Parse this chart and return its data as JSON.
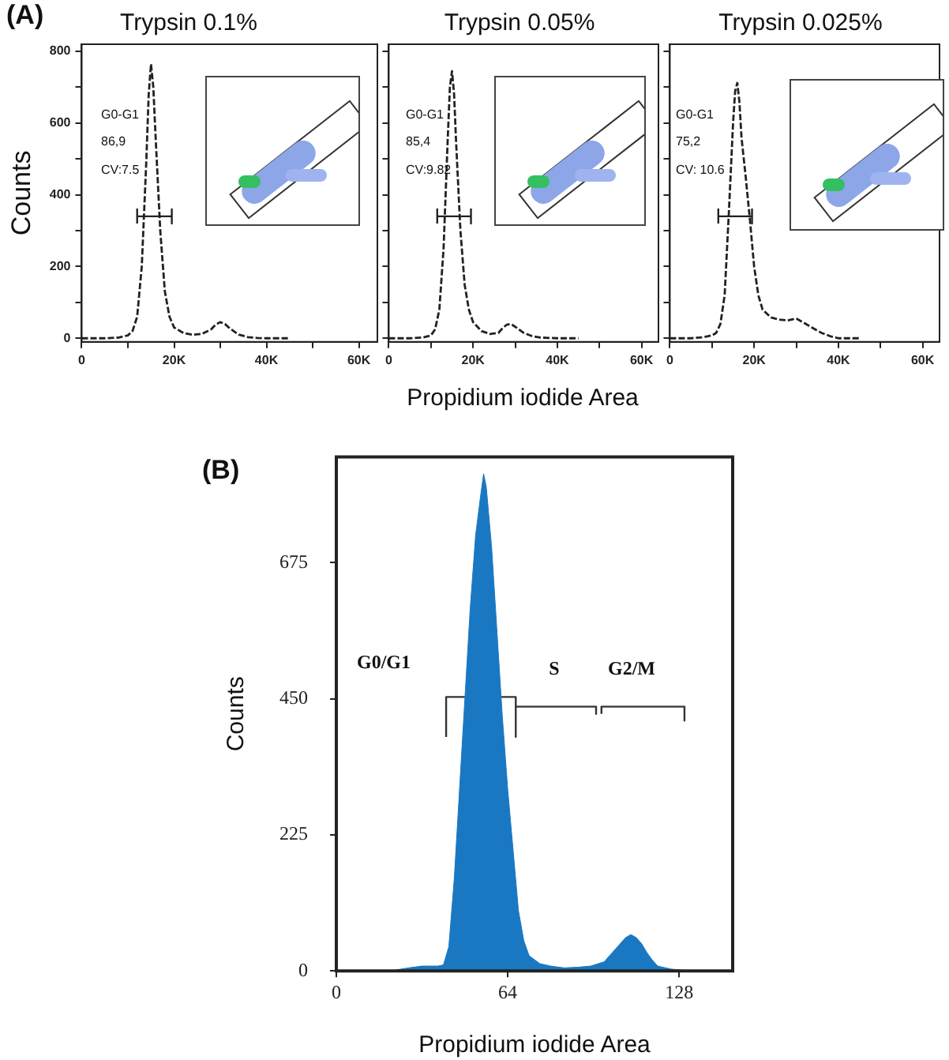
{
  "chart_data": [
    {
      "type": "line",
      "title": "Trypsin 0.1%",
      "ylabel": "Counts",
      "annotations": [
        "(A)",
        "G0-G1",
        "86,9",
        "CV:7.5"
      ],
      "xlim": [
        0,
        64000
      ],
      "ylim": [
        -10,
        820
      ],
      "xticks": [
        0,
        {
          "value": 10000,
          "label": null
        },
        {
          "value": 20000,
          "label": "20K"
        },
        {
          "value": 30000,
          "label": null
        },
        {
          "value": 40000,
          "label": "40K"
        },
        {
          "value": 50000,
          "label": null
        },
        {
          "value": 60000,
          "label": "60K"
        }
      ],
      "yticks": [
        0,
        {
          "value": 100,
          "label": null
        },
        200,
        {
          "value": 300,
          "label": null
        },
        400,
        {
          "value": 500,
          "label": null
        },
        600,
        {
          "value": 700,
          "label": null
        },
        800
      ],
      "series": [
        {
          "color": "#222222",
          "line_style": "dashed",
          "x": [
            0,
            5000,
            8000,
            10000,
            11000,
            12000,
            13000,
            14000,
            14500,
            15000,
            15500,
            16000,
            17000,
            18000,
            19000,
            20000,
            22000,
            24000,
            26000,
            28000,
            29000,
            30000,
            31000,
            32000,
            34000,
            36000,
            38000,
            40000,
            45000
          ],
          "values": [
            0,
            0,
            2,
            8,
            20,
            60,
            200,
            500,
            680,
            765,
            700,
            560,
            300,
            130,
            60,
            30,
            15,
            10,
            12,
            25,
            38,
            45,
            40,
            28,
            10,
            3,
            1,
            0,
            0
          ]
        },
        {
          "type": "line",
          "color": "#222222",
          "line_style": "solid",
          "x": [
            12000,
            12000,
            12000,
            19500,
            19500,
            19500
          ],
          "values": [
            320,
            360,
            340,
            340,
            360,
            320
          ]
        }
      ],
      "grid": false,
      "marker": "none",
      "legend": false
    },
    {
      "type": "line",
      "title": "Trypsin 0.05%",
      "xlabel": "Propidium iodide Area",
      "annotations": [
        "G0-G1",
        "85,4",
        "CV:9.82"
      ],
      "xlim": [
        0,
        64000
      ],
      "ylim": [
        -10,
        820
      ],
      "xticks": [
        0,
        {
          "value": 10000,
          "label": null
        },
        {
          "value": 20000,
          "label": "20K"
        },
        {
          "value": 30000,
          "label": null
        },
        {
          "value": 40000,
          "label": "40K"
        },
        {
          "value": 50000,
          "label": null
        },
        {
          "value": 60000,
          "label": "60K"
        }
      ],
      "yticks": [
        0,
        {
          "value": 100,
          "label": null
        },
        200,
        {
          "value": 300,
          "label": null
        },
        400,
        {
          "value": 500,
          "label": null
        },
        600,
        {
          "value": 700,
          "label": null
        },
        800
      ],
      "series": [
        {
          "color": "#222222",
          "line_style": "dashed",
          "x": [
            0,
            5000,
            8000,
            10000,
            11000,
            12000,
            13000,
            14000,
            14500,
            15000,
            15500,
            16000,
            17000,
            18000,
            19000,
            20000,
            22000,
            24000,
            26000,
            27000,
            28000,
            29000,
            30000,
            32000,
            34000,
            36000,
            38000,
            40000,
            45000
          ],
          "values": [
            0,
            0,
            2,
            8,
            25,
            80,
            250,
            560,
            700,
            745,
            680,
            540,
            300,
            150,
            80,
            45,
            20,
            12,
            15,
            28,
            38,
            40,
            32,
            15,
            6,
            2,
            1,
            0,
            0
          ]
        },
        {
          "type": "line",
          "color": "#222222",
          "line_style": "solid",
          "x": [
            11500,
            11500,
            11500,
            19500,
            19500,
            19500
          ],
          "values": [
            320,
            360,
            340,
            340,
            360,
            320
          ]
        }
      ],
      "grid": false,
      "marker": "none",
      "legend": false,
      "tick_labels": "x"
    },
    {
      "type": "line",
      "title": "Trypsin 0.025%",
      "annotations": [
        "G0-G1",
        "75,2",
        "CV: 10.6"
      ],
      "xlim": [
        0,
        64000
      ],
      "ylim": [
        -10,
        820
      ],
      "xticks": [
        0,
        {
          "value": 10000,
          "label": null
        },
        {
          "value": 20000,
          "label": "20K"
        },
        {
          "value": 30000,
          "label": null
        },
        {
          "value": 40000,
          "label": "40K"
        },
        {
          "value": 50000,
          "label": null
        },
        {
          "value": 60000,
          "label": "60K"
        }
      ],
      "yticks": [
        0,
        {
          "value": 100,
          "label": null
        },
        200,
        {
          "value": 300,
          "label": null
        },
        400,
        {
          "value": 500,
          "label": null
        },
        600,
        {
          "value": 700,
          "label": null
        },
        800
      ],
      "series": [
        {
          "color": "#222222",
          "line_style": "dashed",
          "x": [
            0,
            5000,
            8000,
            10000,
            11000,
            12000,
            13000,
            14000,
            15000,
            15500,
            16000,
            16500,
            17000,
            18000,
            19000,
            20000,
            21000,
            22000,
            24000,
            26000,
            28000,
            30000,
            32000,
            34000,
            36000,
            38000,
            40000,
            45000
          ],
          "values": [
            0,
            0,
            3,
            8,
            15,
            40,
            120,
            350,
            600,
            690,
            712,
            660,
            560,
            450,
            330,
            200,
            120,
            80,
            58,
            52,
            50,
            55,
            42,
            28,
            15,
            6,
            0,
            0
          ]
        },
        {
          "type": "line",
          "color": "#222222",
          "line_style": "solid",
          "x": [
            11500,
            11500,
            11500,
            19500,
            19500,
            19500
          ],
          "values": [
            320,
            360,
            340,
            340,
            360,
            320
          ]
        }
      ],
      "grid": false,
      "marker": "none",
      "legend": false,
      "tick_labels": "x"
    },
    {
      "type": "area",
      "ylabel": "Counts",
      "xlabel": "Propidium iodide Area",
      "annotations": [
        "(B)",
        "G0/G1",
        "S",
        "G2/M"
      ],
      "xlim": [
        0,
        148
      ],
      "ylim": [
        0,
        850
      ],
      "xticks": [
        0,
        64,
        128
      ],
      "yticks": [
        0,
        225,
        450,
        675
      ],
      "series": [
        {
          "color": "#1a78c2",
          "x": [
            20,
            27,
            32,
            38,
            40,
            42,
            44,
            46,
            48,
            50,
            52,
            54,
            55,
            56,
            58,
            60,
            62,
            64,
            66,
            68,
            70,
            72,
            76,
            80,
            85,
            90,
            95,
            100,
            102,
            104,
            106,
            108,
            110,
            112,
            114,
            116,
            118,
            120,
            125,
            130,
            140,
            148
          ],
          "values": [
            0,
            5,
            8,
            8,
            10,
            40,
            150,
            300,
            450,
            600,
            720,
            790,
            822,
            800,
            700,
            560,
            420,
            300,
            200,
            100,
            50,
            25,
            12,
            8,
            5,
            6,
            8,
            15,
            25,
            35,
            45,
            55,
            60,
            55,
            45,
            30,
            18,
            8,
            3,
            1,
            0,
            0
          ]
        },
        {
          "type": "line",
          "color": "#333333",
          "x": [
            41,
            41,
            67,
            67
          ],
          "values": [
            387,
            453,
            453,
            387
          ]
        },
        {
          "type": "line",
          "color": "#333333",
          "x": [
            67,
            97,
            97
          ],
          "values": [
            437,
            437,
            425
          ]
        },
        {
          "type": "line",
          "color": "#333333",
          "x": [
            99,
            99,
            130,
            130
          ],
          "values": [
            425,
            437,
            437,
            414
          ]
        }
      ],
      "grid": false,
      "marker": "none",
      "legend": false
    }
  ]
}
